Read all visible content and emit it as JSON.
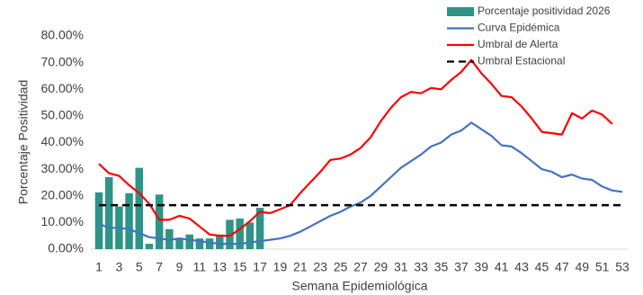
{
  "chart_data": {
    "type": "combo",
    "categories": [
      1,
      null,
      3,
      null,
      5,
      null,
      7,
      null,
      9,
      null,
      11,
      null,
      13,
      null,
      15,
      null,
      17,
      null,
      19,
      null,
      21,
      null,
      23,
      null,
      25,
      null,
      27,
      null,
      29,
      null,
      31,
      null,
      33,
      null,
      35,
      null,
      37,
      null,
      39,
      null,
      41,
      null,
      43,
      null,
      45,
      null,
      47,
      null,
      49,
      null,
      51,
      null,
      53
    ],
    "x_label": "Semana Epidemiológica",
    "y_label": "Porcentaje Positividad",
    "ylim": [
      0,
      80
    ],
    "yticks": [
      {
        "value": 0,
        "label": "0.00%"
      },
      {
        "value": 10,
        "label": "10.00%"
      },
      {
        "value": 20,
        "label": "20.00%"
      },
      {
        "value": 30,
        "label": "30.00%"
      },
      {
        "value": 40,
        "label": "40.00%"
      },
      {
        "value": 50,
        "label": "50.00%"
      },
      {
        "value": 60,
        "label": "60.00%"
      },
      {
        "value": 70,
        "label": "70.00%"
      },
      {
        "value": 80,
        "label": "80.00%"
      }
    ],
    "legend": "upper right",
    "series": [
      {
        "name": "Porcentaje positividad 2026",
        "type": "bar",
        "color": "#2e9488",
        "values": [
          21.3,
          27,
          16,
          21,
          30.5,
          2,
          20.5,
          7.5,
          4,
          5.5,
          4,
          4,
          5.5,
          11,
          11.5,
          10,
          15.5,
          null,
          null,
          null,
          null,
          null,
          null,
          null,
          null,
          null,
          null,
          null,
          null,
          null,
          null,
          null,
          null,
          null,
          null,
          null,
          null,
          null,
          null,
          null,
          null,
          null,
          null,
          null,
          null,
          null,
          null,
          null,
          null,
          null,
          null,
          null,
          null
        ]
      },
      {
        "name": "Curva Epidémica",
        "type": "line",
        "color": "#4472c4",
        "values": [
          9.5,
          8,
          8,
          7.5,
          6,
          4.5,
          4,
          3.5,
          4,
          3.5,
          3,
          2.5,
          2,
          2,
          2,
          2.5,
          3,
          3.5,
          4,
          5,
          6.5,
          8.5,
          10.5,
          12.5,
          14,
          16,
          17.5,
          20,
          23.5,
          27,
          30.5,
          33,
          35.5,
          38.5,
          40,
          43,
          44.5,
          47.5,
          45,
          42.5,
          39,
          38.5,
          36,
          33,
          30,
          29,
          27,
          28,
          26.5,
          26,
          23.5,
          22,
          21.5
        ]
      },
      {
        "name": "Umbral de Alerta",
        "type": "line",
        "color": "#ff0000",
        "values": [
          32,
          28.5,
          27.5,
          24,
          21,
          17,
          11,
          11,
          12.5,
          11.5,
          8.5,
          5.5,
          5,
          5,
          7.5,
          10.5,
          14,
          13.5,
          15,
          16.5,
          21,
          25,
          29,
          33.5,
          34,
          35.5,
          38,
          42,
          48,
          53,
          57,
          59,
          58.5,
          60.5,
          60,
          63.5,
          66.5,
          71,
          66,
          62,
          57.5,
          57,
          53.5,
          49,
          44,
          43.5,
          43,
          51,
          49,
          52,
          50.5,
          47,
          null
        ]
      },
      {
        "name": "Umbral Estacional",
        "type": "line",
        "dash": true,
        "color": "#000000",
        "values": [
          16.5,
          16.5,
          16.5,
          16.5,
          16.5,
          16.5,
          16.5,
          16.5,
          16.5,
          16.5,
          16.5,
          16.5,
          16.5,
          16.5,
          16.5,
          16.5,
          16.5,
          16.5,
          16.5,
          16.5,
          16.5,
          16.5,
          16.5,
          16.5,
          16.5,
          16.5,
          16.5,
          16.5,
          16.5,
          16.5,
          16.5,
          16.5,
          16.5,
          16.5,
          16.5,
          16.5,
          16.5,
          16.5,
          16.5,
          16.5,
          16.5,
          16.5,
          16.5,
          16.5,
          16.5,
          16.5,
          16.5,
          16.5,
          16.5,
          16.5,
          16.5,
          16.5,
          16.5
        ]
      }
    ]
  }
}
